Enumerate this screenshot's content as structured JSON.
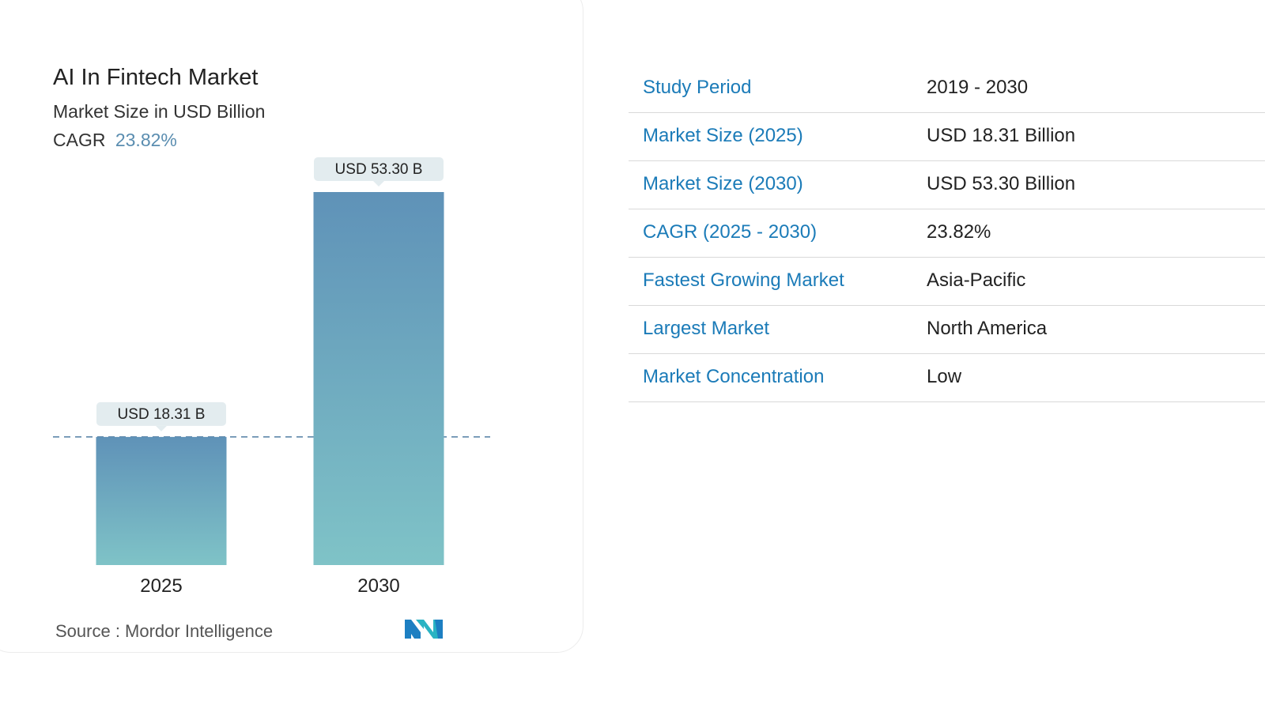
{
  "chart": {
    "title": "AI In Fintech Market",
    "subtitle": "Market Size in USD Billion",
    "cagr_label": "CAGR",
    "cagr_value": "23.82%",
    "source": "Source :  Mordor Intelligence",
    "bar_color_top": "#5f92b8",
    "bar_color_bottom": "#7fc3c7",
    "label_bg": "#e3ecef"
  },
  "chart_data": {
    "type": "bar",
    "categories": [
      "2025",
      "2030"
    ],
    "values": [
      18.31,
      53.3
    ],
    "data_labels": [
      "USD 18.31 B",
      "USD 53.30 B"
    ],
    "title": "AI In Fintech Market",
    "subtitle": "Market Size in USD Billion",
    "ylim": [
      0,
      53.3
    ],
    "reference_line": 18.31,
    "grid": false
  },
  "table": {
    "rows": [
      {
        "label": "Study Period",
        "value": "2019 - 2030"
      },
      {
        "label": "Market Size (2025)",
        "value": "USD 18.31 Billion"
      },
      {
        "label": "Market Size (2030)",
        "value": "USD 53.30 Billion"
      },
      {
        "label": "CAGR (2025 - 2030)",
        "value": "23.82%"
      },
      {
        "label": "Fastest Growing Market",
        "value": "Asia-Pacific"
      },
      {
        "label": "Largest Market",
        "value": "North America"
      },
      {
        "label": "Market Concentration",
        "value": "Low"
      }
    ]
  },
  "logo": {
    "icon": "mordor-intelligence-logo-icon",
    "color_a": "#1d7fc2",
    "color_b": "#2ab3c3"
  }
}
